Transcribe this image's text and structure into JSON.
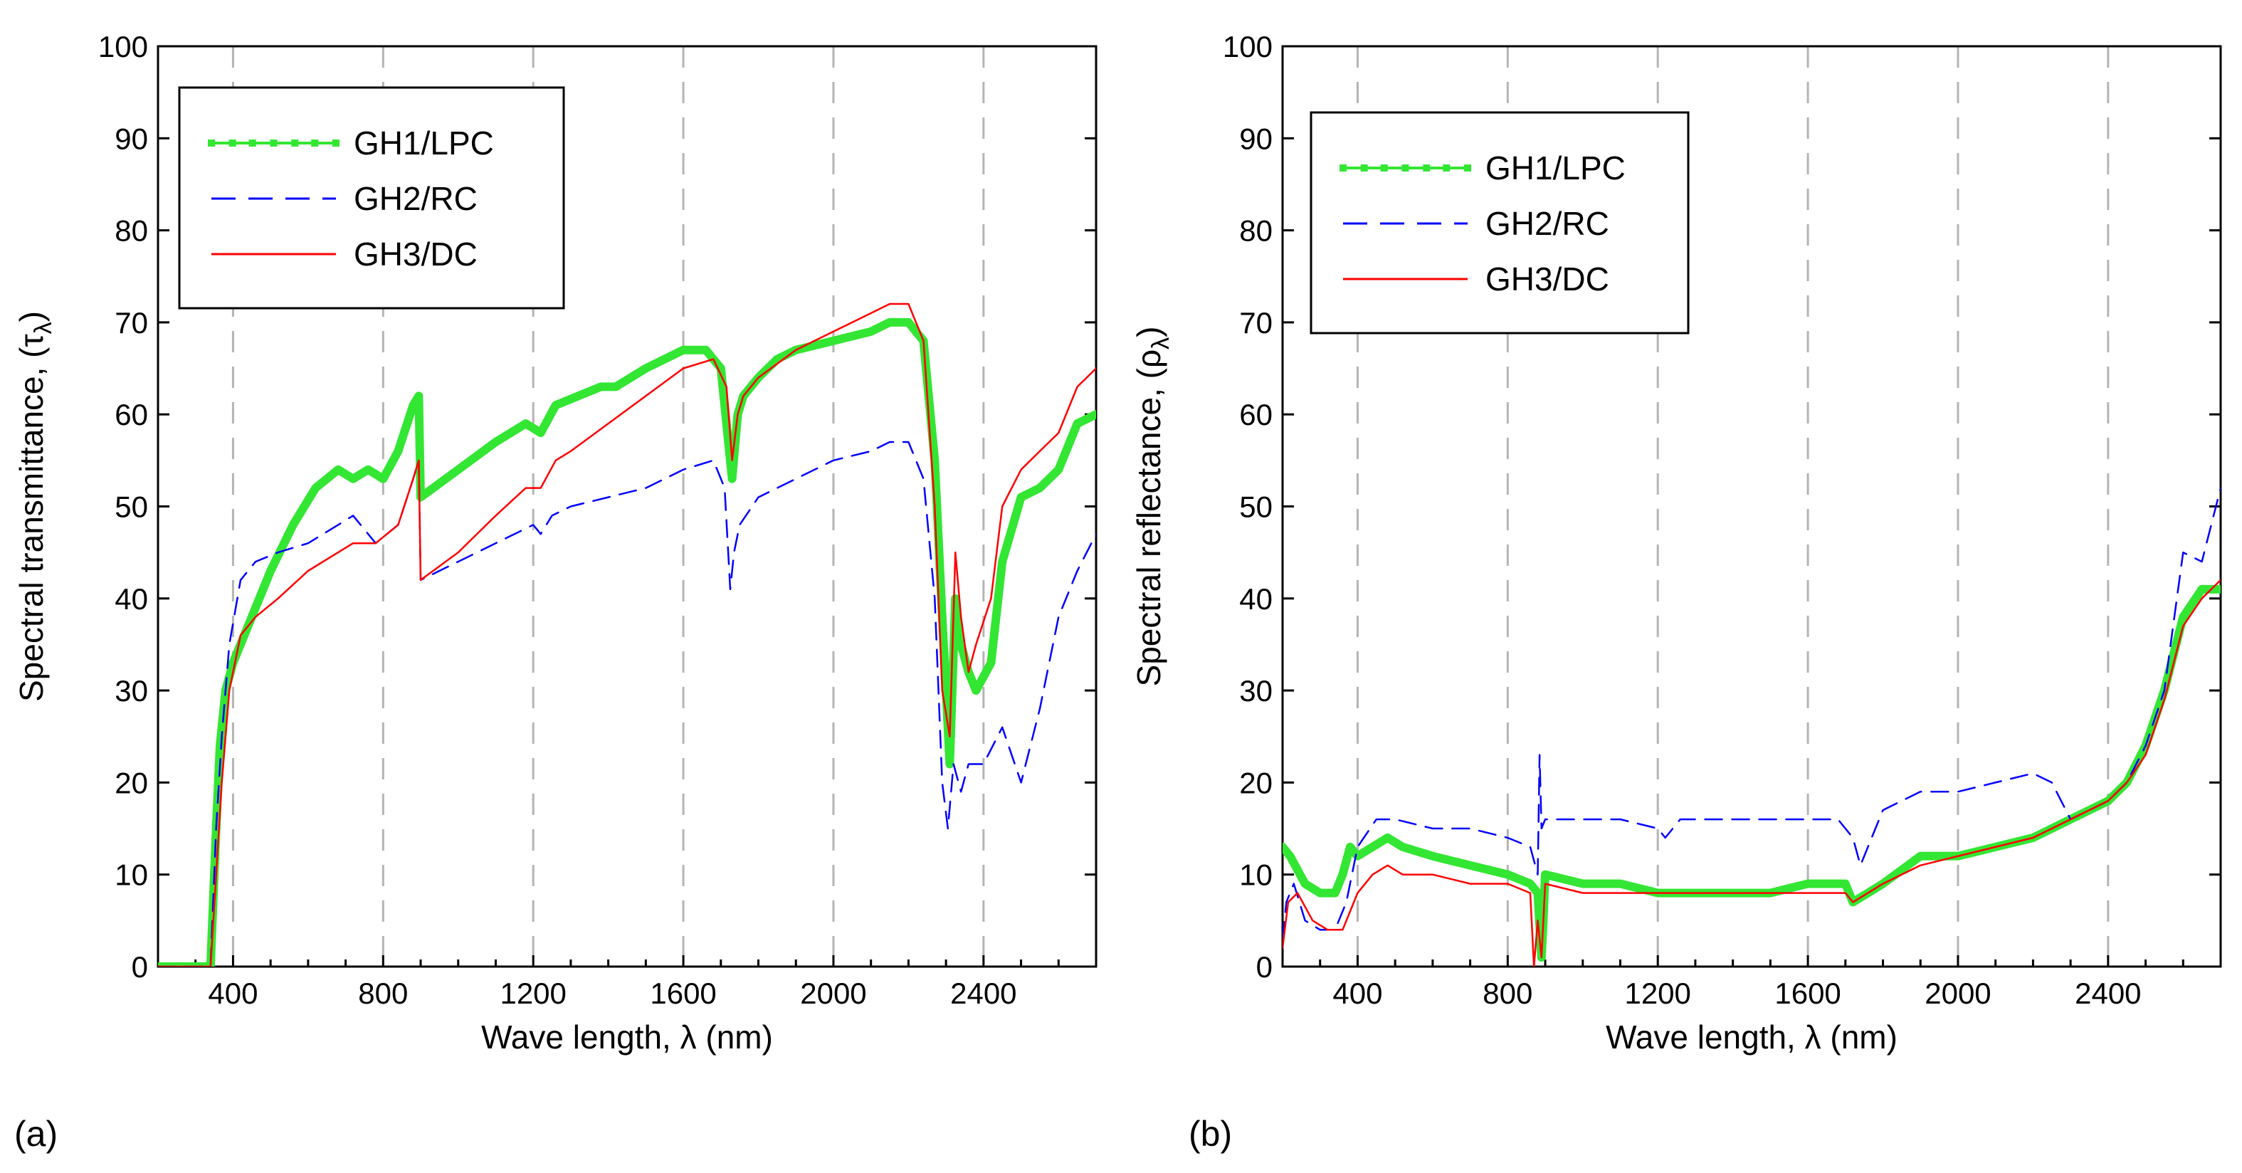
{
  "colors": {
    "GH1": "#33e633",
    "GH1_marker": "#00b400",
    "GH2": "#0000ff",
    "GH3": "#ff0000",
    "grid": "#b4b4b4"
  },
  "chart_data": [
    {
      "type": "line",
      "panel_label": "(a)",
      "xlabel": "Wave length, λ (nm)",
      "ylabel_main": "Spectral transmittance, (τ",
      "ylabel_sub": "λ",
      "ylabel_close": ")",
      "xlim": [
        200,
        2700
      ],
      "ylim": [
        0,
        100
      ],
      "xticks": [
        400,
        800,
        1200,
        1600,
        2000,
        2400
      ],
      "yticks": [
        0,
        10,
        20,
        30,
        40,
        50,
        60,
        70,
        80,
        90,
        100
      ],
      "xtick_labels": [
        "400",
        "800",
        "1200",
        "1600",
        "2000",
        "2400"
      ],
      "ytick_labels": [
        "0",
        "10",
        "20",
        "30",
        "40",
        "50",
        "60",
        "70",
        "80",
        "90",
        "100"
      ],
      "grid": "vertical dashed",
      "legend_position": "top-left",
      "series": [
        {
          "name": "GH1/LPC",
          "style": "solid-thick-markers",
          "x": [
            200,
            340,
            355,
            365,
            380,
            400,
            440,
            500,
            560,
            620,
            680,
            720,
            760,
            800,
            840,
            880,
            895,
            900,
            1000,
            1100,
            1180,
            1220,
            1260,
            1320,
            1380,
            1420,
            1500,
            1600,
            1660,
            1700,
            1730,
            1745,
            1760,
            1800,
            1850,
            1900,
            2000,
            2100,
            2150,
            2200,
            2240,
            2270,
            2290,
            2310,
            2325,
            2340,
            2360,
            2380,
            2420,
            2450,
            2500,
            2550,
            2600,
            2650,
            2700
          ],
          "y": [
            0,
            0,
            15,
            24,
            30,
            33,
            37,
            43,
            48,
            52,
            54,
            53,
            54,
            53,
            56,
            61,
            62,
            51,
            54,
            57,
            59,
            58,
            61,
            62,
            63,
            63,
            65,
            67,
            67,
            65,
            53,
            60,
            62,
            64,
            66,
            67,
            68,
            69,
            70,
            70,
            68,
            55,
            38,
            22,
            40,
            35,
            32,
            30,
            33,
            44,
            51,
            52,
            54,
            59,
            60
          ]
        },
        {
          "name": "GH2/RC",
          "style": "dashed",
          "x": [
            200,
            340,
            355,
            370,
            390,
            420,
            460,
            520,
            600,
            680,
            720,
            780,
            840,
            880,
            895,
            900,
            1000,
            1100,
            1200,
            1220,
            1250,
            1300,
            1400,
            1500,
            1600,
            1680,
            1710,
            1725,
            1735,
            1750,
            1800,
            1900,
            2000,
            2100,
            2150,
            2200,
            2240,
            2270,
            2290,
            2305,
            2320,
            2340,
            2360,
            2400,
            2450,
            2500,
            2550,
            2600,
            2650,
            2700
          ],
          "y": [
            0,
            0,
            15,
            25,
            35,
            42,
            44,
            45,
            46,
            48,
            49,
            46,
            48,
            53,
            55,
            42,
            44,
            46,
            48,
            47,
            49,
            50,
            51,
            52,
            54,
            55,
            52,
            41,
            45,
            48,
            51,
            53,
            55,
            56,
            57,
            57,
            53,
            40,
            20,
            15,
            22,
            19,
            22,
            22,
            26,
            20,
            28,
            38,
            43,
            47
          ]
        },
        {
          "name": "GH3/DC",
          "style": "solid",
          "x": [
            200,
            340,
            355,
            370,
            390,
            420,
            460,
            520,
            600,
            680,
            720,
            780,
            840,
            880,
            895,
            900,
            1000,
            1100,
            1180,
            1220,
            1260,
            1300,
            1400,
            1500,
            1600,
            1680,
            1715,
            1730,
            1745,
            1760,
            1800,
            1900,
            2000,
            2100,
            2150,
            2200,
            2240,
            2270,
            2290,
            2310,
            2325,
            2340,
            2360,
            2380,
            2420,
            2450,
            2500,
            2550,
            2600,
            2650,
            2700
          ],
          "y": [
            0,
            0,
            10,
            20,
            30,
            36,
            38,
            40,
            43,
            45,
            46,
            46,
            48,
            53,
            55,
            42,
            45,
            49,
            52,
            52,
            55,
            56,
            59,
            62,
            65,
            66,
            63,
            55,
            60,
            62,
            64,
            67,
            69,
            71,
            72,
            72,
            68,
            50,
            30,
            25,
            45,
            38,
            32,
            35,
            40,
            50,
            54,
            56,
            58,
            63,
            65
          ]
        }
      ]
    },
    {
      "type": "line",
      "panel_label": "(b)",
      "xlabel": "Wave length, λ (nm)",
      "ylabel_main": "Spectral reflectance, (ρ",
      "ylabel_sub": "λ",
      "ylabel_close": ")",
      "xlim": [
        200,
        2700
      ],
      "ylim": [
        0,
        100
      ],
      "xticks": [
        400,
        800,
        1200,
        1600,
        2000,
        2400
      ],
      "yticks": [
        0,
        10,
        20,
        30,
        40,
        50,
        60,
        70,
        80,
        90,
        100
      ],
      "xtick_labels": [
        "400",
        "800",
        "1200",
        "1600",
        "2000",
        "2400"
      ],
      "ytick_labels": [
        "0",
        "10",
        "20",
        "30",
        "40",
        "50",
        "60",
        "70",
        "80",
        "90",
        "100"
      ],
      "grid": "vertical dashed",
      "legend_position": "top-left",
      "series": [
        {
          "name": "GH1/LPC",
          "style": "solid-thick-markers",
          "x": [
            200,
            220,
            260,
            300,
            340,
            360,
            380,
            400,
            440,
            480,
            520,
            600,
            700,
            800,
            860,
            880,
            890,
            895,
            900,
            1000,
            1100,
            1200,
            1300,
            1400,
            1500,
            1600,
            1700,
            1720,
            1760,
            1800,
            1900,
            2000,
            2100,
            2200,
            2300,
            2400,
            2450,
            2500,
            2550,
            2600,
            2650,
            2700
          ],
          "y": [
            13,
            12,
            9,
            8,
            8,
            10,
            13,
            12,
            13,
            14,
            13,
            12,
            11,
            10,
            9,
            8,
            1,
            5,
            10,
            9,
            9,
            8,
            8,
            8,
            8,
            9,
            9,
            7,
            8,
            9,
            12,
            12,
            13,
            14,
            16,
            18,
            20,
            24,
            30,
            38,
            41,
            41
          ]
        },
        {
          "name": "GH2/RC",
          "style": "dashed",
          "x": [
            200,
            210,
            230,
            260,
            300,
            340,
            370,
            400,
            450,
            500,
            600,
            700,
            800,
            860,
            880,
            885,
            890,
            900,
            1000,
            1100,
            1200,
            1220,
            1260,
            1300,
            1400,
            1500,
            1600,
            1680,
            1720,
            1740,
            1780,
            1800,
            1900,
            2000,
            2100,
            2200,
            2250,
            2300,
            2350,
            2400,
            2450,
            2500,
            2550,
            2600,
            2650,
            2700
          ],
          "y": [
            3,
            7,
            9,
            5,
            4,
            4,
            7,
            13,
            16,
            16,
            15,
            15,
            14,
            13,
            10,
            23,
            15,
            16,
            16,
            16,
            15,
            14,
            16,
            16,
            16,
            16,
            16,
            16,
            14,
            11,
            15,
            17,
            19,
            19,
            20,
            21,
            20,
            16,
            17,
            18,
            20,
            24,
            30,
            45,
            44,
            52
          ]
        },
        {
          "name": "GH3/DC",
          "style": "solid",
          "x": [
            200,
            215,
            240,
            280,
            320,
            360,
            400,
            440,
            480,
            520,
            600,
            700,
            800,
            860,
            870,
            880,
            890,
            900,
            1000,
            1100,
            1200,
            1300,
            1400,
            1500,
            1600,
            1700,
            1720,
            1760,
            1800,
            1900,
            2000,
            2100,
            2200,
            2300,
            2400,
            2450,
            2500,
            2550,
            2600,
            2650,
            2700
          ],
          "y": [
            2,
            7,
            8,
            5,
            4,
            4,
            8,
            10,
            11,
            10,
            10,
            9,
            9,
            8,
            0,
            5,
            1,
            9,
            8,
            8,
            8,
            8,
            8,
            8,
            8,
            8,
            7,
            8,
            9,
            11,
            12,
            13,
            14,
            16,
            18,
            20,
            23,
            29,
            37,
            40,
            42
          ]
        }
      ]
    }
  ]
}
